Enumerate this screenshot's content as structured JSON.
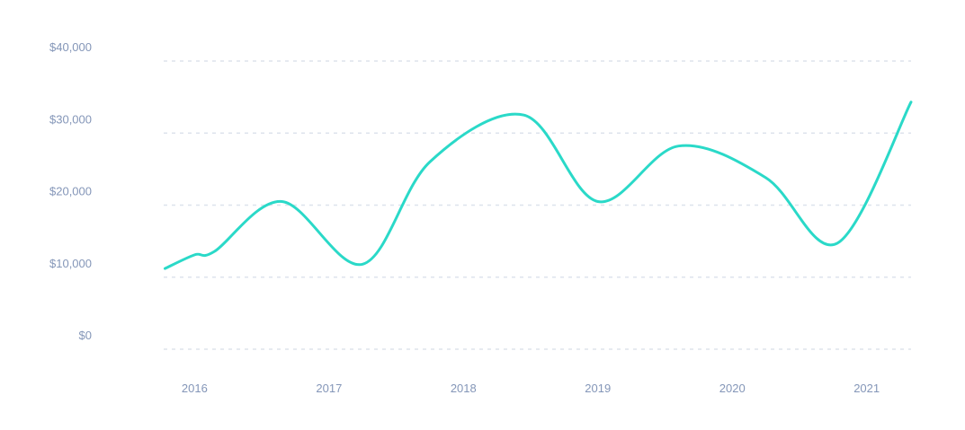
{
  "chart_data": {
    "type": "line",
    "title": "",
    "xlabel": "",
    "ylabel": "",
    "ylim": [
      0,
      40000
    ],
    "xlim": [
      2015.77,
      2021.33
    ],
    "grid": true,
    "legend": "none",
    "y_ticks": [
      0,
      10000,
      20000,
      30000,
      40000
    ],
    "y_tick_labels": [
      "$0",
      "$10,000",
      "$20,000",
      "$30,000",
      "$40,000"
    ],
    "x_ticks": [
      2016,
      2017,
      2018,
      2019,
      2020,
      2021
    ],
    "x_tick_labels": [
      "2016",
      "2017",
      "2018",
      "2019",
      "2020",
      "2021"
    ],
    "series": [
      {
        "color": "#2ad9c8",
        "x": [
          2015.78,
          2016.0,
          2016.15,
          2016.65,
          2017.25,
          2017.75,
          2018.45,
          2019.0,
          2019.6,
          2020.25,
          2020.78,
          2021.33
        ],
        "y": [
          11200,
          13100,
          13600,
          20500,
          11800,
          26000,
          32500,
          20500,
          28200,
          23800,
          14700,
          34300
        ]
      }
    ]
  }
}
